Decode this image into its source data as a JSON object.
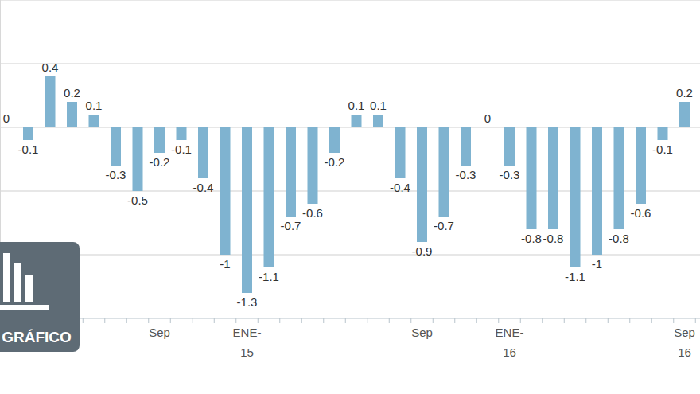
{
  "chart_data": {
    "type": "bar",
    "categories": [
      null,
      null,
      null,
      null,
      null,
      null,
      null,
      "Sep",
      null,
      null,
      null,
      "ENE-15",
      null,
      null,
      null,
      null,
      null,
      null,
      null,
      "Sep",
      null,
      null,
      null,
      "ENE-16",
      null,
      null,
      null,
      null,
      null,
      null,
      null,
      "Sep 16"
    ],
    "values": [
      0,
      -0.1,
      0.4,
      0.2,
      0.1,
      -0.3,
      -0.5,
      -0.2,
      -0.1,
      -0.4,
      -1,
      -1.3,
      -1.1,
      -0.7,
      -0.6,
      -0.2,
      0.1,
      0.1,
      -0.4,
      -0.9,
      -0.7,
      -0.3,
      0,
      -0.3,
      -0.8,
      -0.8,
      -1.1,
      -1,
      -0.8,
      -0.6,
      -0.1,
      0.2
    ],
    "color": "#7fb3d0",
    "ylim": [
      -1.5,
      1
    ],
    "yticks": [
      -1,
      -0.5,
      0,
      0.5,
      1
    ],
    "grid": true,
    "data_labels": true,
    "tick_labels": "x",
    "annotations": [
      "GRÁFICO"
    ]
  }
}
